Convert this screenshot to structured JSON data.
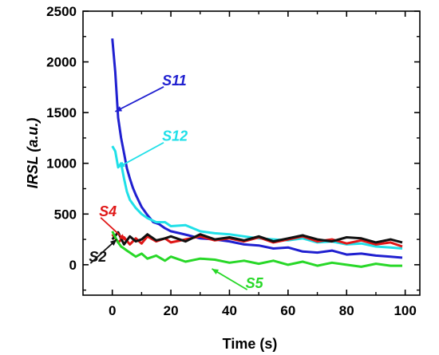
{
  "chart_data": {
    "type": "line",
    "title": "",
    "xlabel": "Time (s)",
    "ylabel": "IRSL (a.u.)",
    "xlim": [
      -10,
      105
    ],
    "ylim": [
      -300,
      2500
    ],
    "xticks": [
      0,
      20,
      40,
      60,
      80,
      100
    ],
    "yticks": [
      0,
      500,
      1000,
      1500,
      2000,
      2500
    ],
    "x_minor_step": 10,
    "y_minor_step": 250,
    "grid": false,
    "legend": "none",
    "series": [
      {
        "name": "S11",
        "color": "#2020d0",
        "x": [
          0,
          1,
          2,
          3,
          4,
          5,
          6,
          7,
          8,
          10,
          12,
          14,
          16,
          18,
          20,
          23,
          26,
          30,
          35,
          40,
          45,
          50,
          55,
          60,
          65,
          70,
          75,
          80,
          85,
          90,
          95,
          99
        ],
        "y": [
          2230,
          1900,
          1450,
          1250,
          1100,
          950,
          850,
          760,
          690,
          570,
          490,
          420,
          400,
          360,
          330,
          310,
          290,
          260,
          250,
          230,
          200,
          190,
          160,
          170,
          130,
          120,
          140,
          100,
          110,
          90,
          80,
          70
        ]
      },
      {
        "name": "S12",
        "color": "#20e0e8",
        "x": [
          0,
          1,
          2,
          3,
          4,
          5,
          6,
          8,
          10,
          12,
          15,
          18,
          20,
          25,
          30,
          35,
          40,
          45,
          50,
          55,
          60,
          65,
          70,
          75,
          80,
          85,
          90,
          95,
          99
        ],
        "y": [
          1170,
          1120,
          960,
          1000,
          850,
          720,
          640,
          560,
          500,
          460,
          420,
          420,
          380,
          390,
          330,
          310,
          300,
          280,
          260,
          250,
          240,
          260,
          220,
          230,
          200,
          210,
          180,
          170,
          160
        ]
      },
      {
        "name": "S4",
        "color": "#e01818",
        "x": [
          0,
          2,
          4,
          6,
          8,
          10,
          12,
          15,
          18,
          20,
          25,
          30,
          35,
          40,
          45,
          50,
          55,
          60,
          65,
          70,
          75,
          80,
          85,
          90,
          95,
          99
        ],
        "y": [
          300,
          220,
          270,
          200,
          260,
          210,
          280,
          230,
          260,
          220,
          250,
          280,
          240,
          260,
          230,
          270,
          220,
          250,
          280,
          230,
          250,
          210,
          240,
          200,
          220,
          180
        ]
      },
      {
        "name": "S2",
        "color": "#111111",
        "x": [
          0,
          2,
          4,
          6,
          8,
          10,
          12,
          15,
          18,
          20,
          25,
          30,
          35,
          40,
          45,
          50,
          55,
          60,
          65,
          70,
          75,
          80,
          85,
          90,
          95,
          99
        ],
        "y": [
          250,
          320,
          200,
          280,
          230,
          250,
          300,
          240,
          260,
          280,
          230,
          300,
          250,
          270,
          240,
          280,
          230,
          260,
          290,
          250,
          230,
          270,
          260,
          220,
          250,
          220
        ]
      },
      {
        "name": "S5",
        "color": "#28d828",
        "x": [
          0,
          1,
          2,
          3,
          4,
          5,
          6,
          8,
          10,
          12,
          15,
          18,
          20,
          25,
          30,
          35,
          40,
          45,
          50,
          55,
          60,
          65,
          70,
          75,
          80,
          85,
          90,
          95,
          99
        ],
        "y": [
          330,
          270,
          220,
          180,
          160,
          140,
          120,
          80,
          110,
          60,
          90,
          40,
          80,
          30,
          60,
          50,
          20,
          40,
          10,
          40,
          0,
          30,
          -10,
          20,
          0,
          -20,
          10,
          -10,
          -10
        ]
      }
    ],
    "annotations": [
      {
        "text": "S11",
        "color": "#2020d0",
        "text_at": [
          17,
          1770
        ],
        "arrow_to": [
          1,
          1510
        ]
      },
      {
        "text": "S12",
        "color": "#20e0e8",
        "text_at": [
          17,
          1220
        ],
        "arrow_to": [
          2,
          960
        ]
      },
      {
        "text": "S4",
        "color": "#e01818",
        "text_at": [
          -4.5,
          480
        ],
        "arrow_to": [
          4.5,
          240
        ]
      },
      {
        "text": "S2",
        "color": "#111111",
        "text_at": [
          -8,
          30
        ],
        "arrow_to": [
          1.5,
          250
        ]
      },
      {
        "text": "S5",
        "color": "#28d828",
        "text_at": [
          45.5,
          -230
        ],
        "arrow_to": [
          34,
          -40
        ]
      }
    ]
  }
}
